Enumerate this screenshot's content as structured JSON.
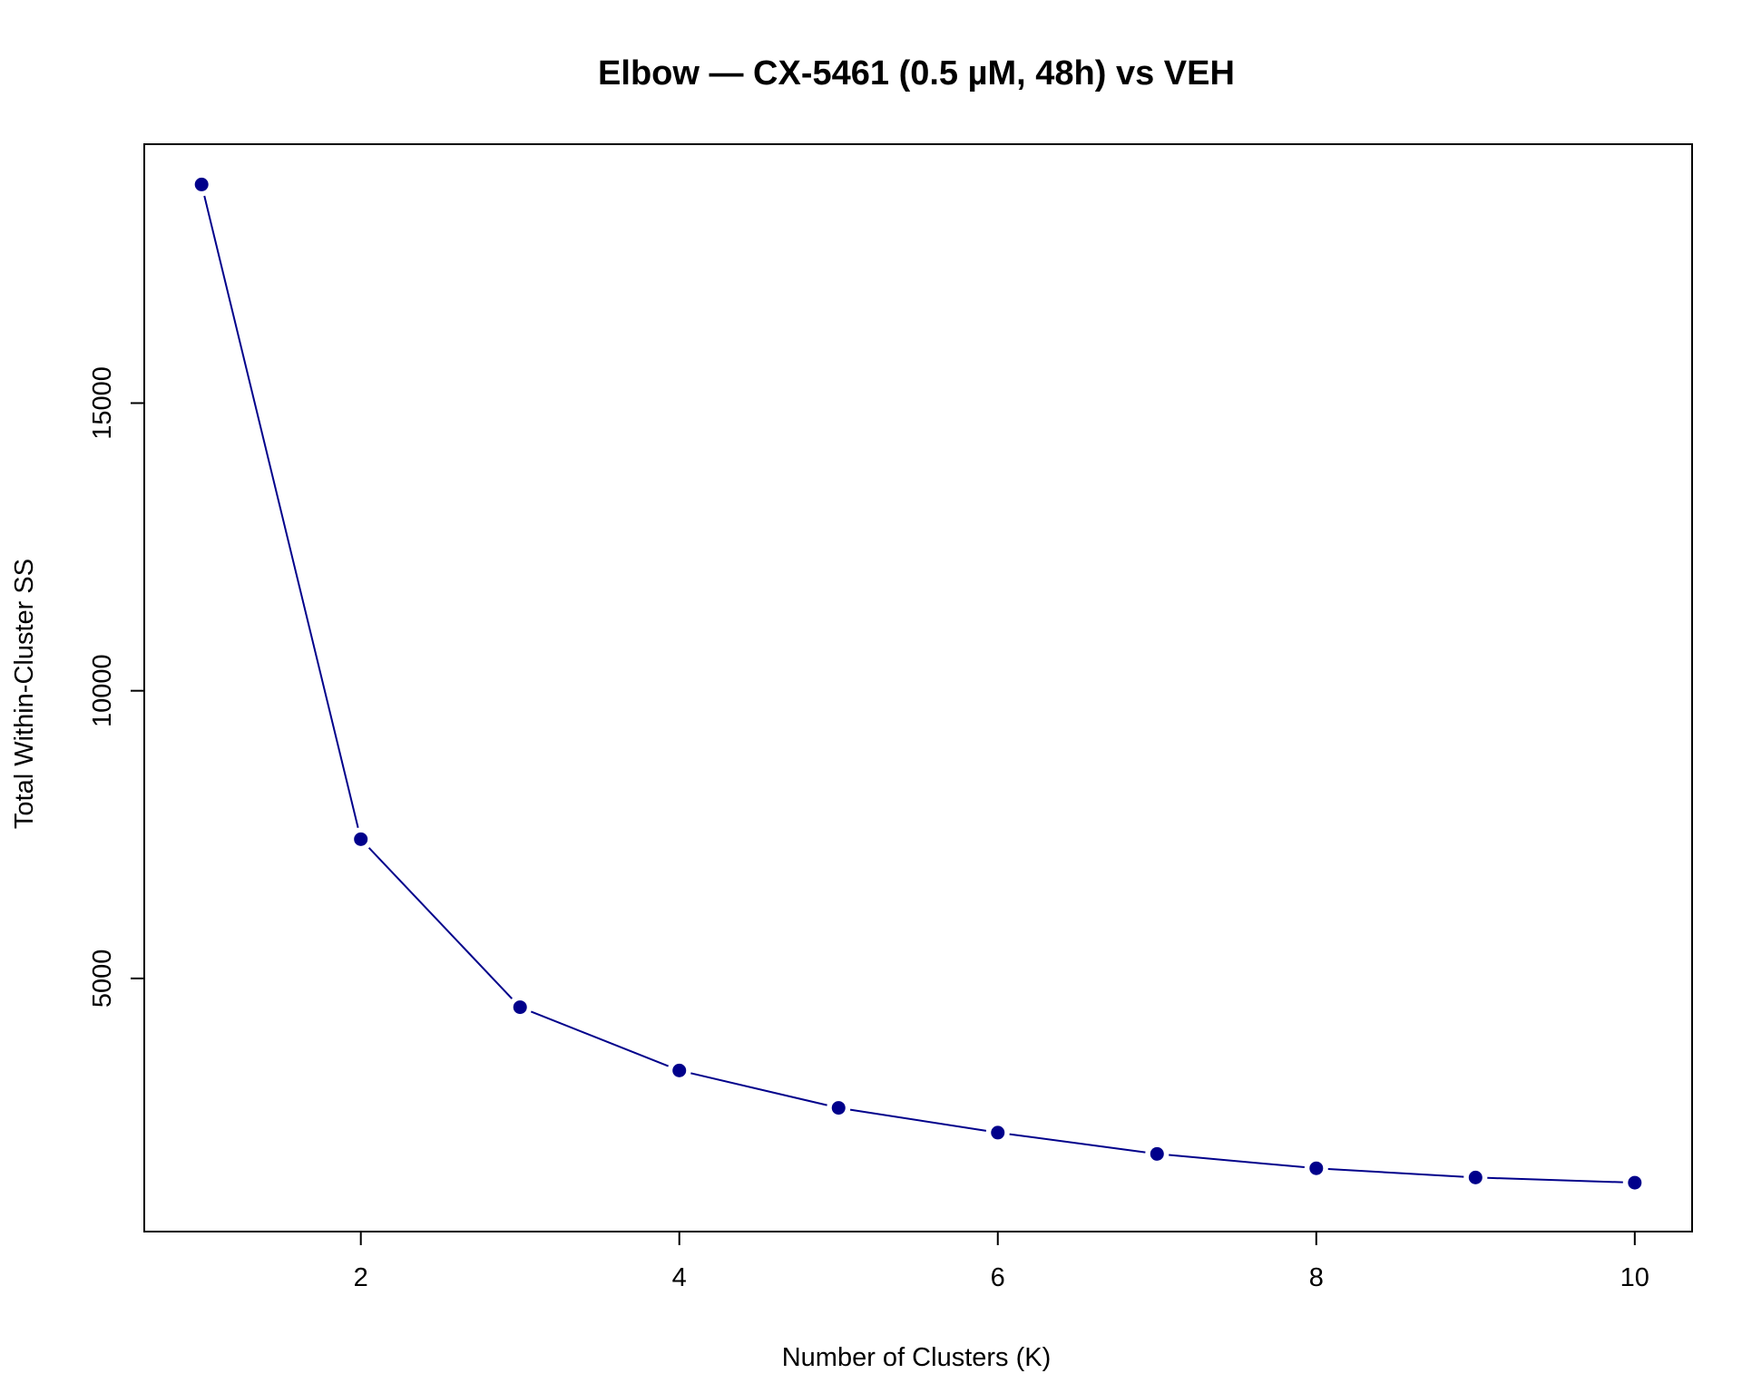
{
  "chart_data": {
    "type": "line",
    "title": "Elbow — CX-5461 (0.5 µM, 48h) vs VEH",
    "xlabel": "Number of Clusters (K)",
    "ylabel": "Total Within-Cluster SS",
    "x": [
      1,
      2,
      3,
      4,
      5,
      6,
      7,
      8,
      9,
      10
    ],
    "series": [
      {
        "values": [
          18800,
          7420,
          4500,
          3400,
          2750,
          2320,
          1950,
          1700,
          1540,
          1450
        ]
      }
    ],
    "xlim": [
      0.64,
      10.36
    ],
    "ylim": [
      600,
      19500
    ],
    "x_ticks": [
      2,
      4,
      6,
      8,
      10
    ],
    "y_ticks": [
      5000,
      10000,
      15000
    ],
    "grid": false,
    "marker": "filled-circle",
    "colors": {
      "series": "#00008b"
    }
  }
}
